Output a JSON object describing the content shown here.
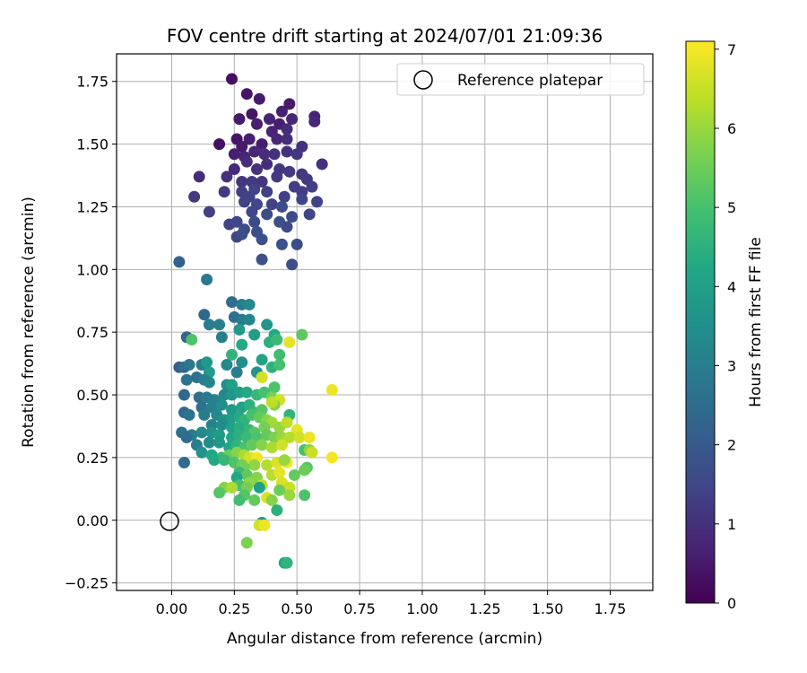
{
  "chart_data": {
    "type": "scatter",
    "title": "FOV centre drift starting at 2024/07/01 21:09:36",
    "xlabel": "Angular distance from reference (arcmin)",
    "ylabel": "Rotation from reference (arcmin)",
    "xlim": [
      -0.22,
      1.92
    ],
    "ylim": [
      -0.28,
      1.86
    ],
    "xticks": [
      0.0,
      0.25,
      0.5,
      0.75,
      1.0,
      1.25,
      1.5,
      1.75
    ],
    "xtick_labels": [
      "0.00",
      "0.25",
      "0.50",
      "0.75",
      "1.00",
      "1.25",
      "1.50",
      "1.75"
    ],
    "yticks": [
      -0.25,
      0.0,
      0.25,
      0.5,
      0.75,
      1.0,
      1.25,
      1.5,
      1.75
    ],
    "ytick_labels": [
      "−0.25",
      "0.00",
      "0.25",
      "0.50",
      "0.75",
      "1.00",
      "1.25",
      "1.50",
      "1.75"
    ],
    "grid": true,
    "legend": {
      "placement": "top-right",
      "entries": [
        "Reference platepar"
      ]
    },
    "reference_point": {
      "x": 0.0,
      "y": 0.0,
      "label": "Reference platepar"
    },
    "colorbar": {
      "label": "Hours from first FF file",
      "colormap": "viridis",
      "range": [
        0,
        7.1
      ],
      "ticks": [
        0,
        1,
        2,
        3,
        4,
        5,
        6,
        7
      ],
      "tick_labels": [
        "0",
        "1",
        "2",
        "3",
        "4",
        "5",
        "6",
        "7"
      ]
    },
    "points": [
      [
        0.24,
        1.76,
        0.3
      ],
      [
        0.3,
        1.7,
        0.4
      ],
      [
        0.35,
        1.68,
        0.5
      ],
      [
        0.44,
        1.63,
        0.6
      ],
      [
        0.47,
        1.66,
        0.5
      ],
      [
        0.57,
        1.61,
        0.7
      ],
      [
        0.57,
        1.59,
        0.8
      ],
      [
        0.27,
        1.6,
        0.5
      ],
      [
        0.32,
        1.62,
        0.4
      ],
      [
        0.34,
        1.58,
        0.6
      ],
      [
        0.39,
        1.6,
        0.7
      ],
      [
        0.43,
        1.58,
        0.6
      ],
      [
        0.48,
        1.6,
        0.8
      ],
      [
        0.46,
        1.56,
        0.9
      ],
      [
        0.19,
        1.5,
        0.3
      ],
      [
        0.26,
        1.52,
        0.4
      ],
      [
        0.28,
        1.49,
        0.5
      ],
      [
        0.31,
        1.52,
        0.6
      ],
      [
        0.36,
        1.5,
        0.5
      ],
      [
        0.4,
        1.55,
        0.7
      ],
      [
        0.42,
        1.52,
        0.8
      ],
      [
        0.46,
        1.52,
        0.9
      ],
      [
        0.52,
        1.49,
        1.0
      ],
      [
        0.25,
        1.46,
        0.6
      ],
      [
        0.29,
        1.45,
        0.7
      ],
      [
        0.33,
        1.47,
        0.8
      ],
      [
        0.37,
        1.46,
        0.9
      ],
      [
        0.41,
        1.46,
        1.0
      ],
      [
        0.46,
        1.47,
        1.0
      ],
      [
        0.5,
        1.46,
        1.1
      ],
      [
        0.25,
        1.4,
        0.8
      ],
      [
        0.3,
        1.43,
        0.9
      ],
      [
        0.34,
        1.4,
        1.0
      ],
      [
        0.38,
        1.42,
        0.9
      ],
      [
        0.43,
        1.4,
        1.1
      ],
      [
        0.47,
        1.39,
        1.2
      ],
      [
        0.52,
        1.38,
        1.1
      ],
      [
        0.54,
        1.36,
        1.2
      ],
      [
        0.6,
        1.42,
        1.0
      ],
      [
        0.11,
        1.37,
        0.9
      ],
      [
        0.22,
        1.37,
        1.0
      ],
      [
        0.28,
        1.35,
        1.1
      ],
      [
        0.32,
        1.35,
        1.2
      ],
      [
        0.36,
        1.35,
        1.1
      ],
      [
        0.42,
        1.37,
        1.2
      ],
      [
        0.49,
        1.33,
        1.3
      ],
      [
        0.52,
        1.31,
        1.3
      ],
      [
        0.56,
        1.33,
        1.3
      ],
      [
        0.21,
        1.31,
        1.2
      ],
      [
        0.28,
        1.31,
        1.3
      ],
      [
        0.31,
        1.29,
        1.4
      ],
      [
        0.33,
        1.32,
        1.4
      ],
      [
        0.38,
        1.31,
        1.3
      ],
      [
        0.45,
        1.29,
        1.4
      ],
      [
        0.09,
        1.29,
        1.2
      ],
      [
        0.29,
        1.27,
        1.4
      ],
      [
        0.34,
        1.26,
        1.5
      ],
      [
        0.4,
        1.26,
        1.4
      ],
      [
        0.44,
        1.25,
        1.6
      ],
      [
        0.52,
        1.28,
        1.5
      ],
      [
        0.58,
        1.27,
        1.4
      ],
      [
        0.15,
        1.23,
        1.3
      ],
      [
        0.32,
        1.23,
        1.5
      ],
      [
        0.38,
        1.22,
        1.6
      ],
      [
        0.48,
        1.21,
        1.6
      ],
      [
        0.55,
        1.22,
        1.5
      ],
      [
        0.33,
        1.19,
        1.6
      ],
      [
        0.23,
        1.18,
        1.4
      ],
      [
        0.26,
        1.19,
        1.5
      ],
      [
        0.29,
        1.16,
        1.6
      ],
      [
        0.34,
        1.15,
        1.7
      ],
      [
        0.43,
        1.19,
        1.7
      ],
      [
        0.46,
        1.17,
        1.6
      ],
      [
        0.26,
        1.13,
        1.5
      ],
      [
        0.28,
        1.14,
        1.7
      ],
      [
        0.36,
        1.12,
        1.7
      ],
      [
        0.44,
        1.1,
        1.8
      ],
      [
        0.5,
        1.1,
        1.7
      ],
      [
        0.36,
        1.04,
        1.8
      ],
      [
        0.48,
        1.02,
        1.7
      ],
      [
        0.03,
        1.03,
        2.2
      ],
      [
        0.14,
        0.96,
        2.8
      ],
      [
        0.24,
        0.87,
        2.5
      ],
      [
        0.28,
        0.86,
        3.0
      ],
      [
        0.31,
        0.86,
        3.3
      ],
      [
        0.13,
        0.82,
        2.4
      ],
      [
        0.25,
        0.81,
        2.6
      ],
      [
        0.28,
        0.8,
        2.9
      ],
      [
        0.15,
        0.78,
        3.0
      ],
      [
        0.31,
        0.8,
        3.2
      ],
      [
        0.38,
        0.78,
        3.7
      ],
      [
        0.19,
        0.78,
        3.1
      ],
      [
        0.27,
        0.76,
        3.8
      ],
      [
        0.33,
        0.74,
        3.9
      ],
      [
        0.41,
        0.74,
        4.3
      ],
      [
        0.52,
        0.74,
        5.3
      ],
      [
        0.06,
        0.73,
        2.3
      ],
      [
        0.08,
        0.72,
        5.1
      ],
      [
        0.2,
        0.73,
        3.0
      ],
      [
        0.28,
        0.7,
        4.3
      ],
      [
        0.39,
        0.71,
        4.5
      ],
      [
        0.42,
        0.72,
        4.8
      ],
      [
        0.47,
        0.71,
        6.8
      ],
      [
        0.36,
        0.64,
        4.1
      ],
      [
        0.43,
        0.66,
        4.9
      ],
      [
        0.24,
        0.66,
        4.6
      ],
      [
        0.03,
        0.61,
        2.1
      ],
      [
        0.05,
        0.61,
        2.5
      ],
      [
        0.07,
        0.62,
        2.8
      ],
      [
        0.12,
        0.62,
        3.0
      ],
      [
        0.14,
        0.63,
        3.8
      ],
      [
        0.15,
        0.59,
        3.9
      ],
      [
        0.22,
        0.62,
        3.3
      ],
      [
        0.28,
        0.63,
        3.5
      ],
      [
        0.34,
        0.59,
        3.6
      ],
      [
        0.4,
        0.61,
        4.5
      ],
      [
        0.43,
        0.62,
        5.0
      ],
      [
        0.26,
        0.59,
        3.0
      ],
      [
        0.06,
        0.56,
        2.7
      ],
      [
        0.1,
        0.57,
        2.6
      ],
      [
        0.13,
        0.56,
        3.0
      ],
      [
        0.15,
        0.55,
        3.2
      ],
      [
        0.22,
        0.54,
        3.5
      ],
      [
        0.24,
        0.54,
        4.0
      ],
      [
        0.36,
        0.57,
        6.6
      ],
      [
        0.41,
        0.53,
        5.1
      ],
      [
        0.05,
        0.5,
        2.4
      ],
      [
        0.11,
        0.49,
        2.6
      ],
      [
        0.14,
        0.49,
        2.9
      ],
      [
        0.17,
        0.48,
        3.1
      ],
      [
        0.21,
        0.5,
        3.3
      ],
      [
        0.24,
        0.5,
        3.7
      ],
      [
        0.27,
        0.51,
        4.0
      ],
      [
        0.3,
        0.51,
        4.3
      ],
      [
        0.34,
        0.5,
        4.7
      ],
      [
        0.37,
        0.51,
        5.0
      ],
      [
        0.4,
        0.49,
        5.6
      ],
      [
        0.43,
        0.48,
        6.6
      ],
      [
        0.64,
        0.52,
        6.9
      ],
      [
        0.12,
        0.45,
        2.6
      ],
      [
        0.16,
        0.45,
        3.1
      ],
      [
        0.2,
        0.46,
        3.4
      ],
      [
        0.24,
        0.44,
        3.8
      ],
      [
        0.28,
        0.45,
        4.1
      ],
      [
        0.31,
        0.46,
        4.5
      ],
      [
        0.33,
        0.43,
        4.8
      ],
      [
        0.36,
        0.44,
        5.2
      ],
      [
        0.41,
        0.46,
        5.8
      ],
      [
        0.4,
        0.47,
        6.4
      ],
      [
        0.05,
        0.43,
        2.4
      ],
      [
        0.07,
        0.42,
        2.7
      ],
      [
        0.13,
        0.42,
        3.0
      ],
      [
        0.18,
        0.42,
        3.3
      ],
      [
        0.21,
        0.4,
        3.6
      ],
      [
        0.24,
        0.41,
        3.9
      ],
      [
        0.27,
        0.41,
        4.3
      ],
      [
        0.29,
        0.4,
        4.6
      ],
      [
        0.32,
        0.42,
        5.0
      ],
      [
        0.35,
        0.41,
        5.4
      ],
      [
        0.38,
        0.4,
        5.8
      ],
      [
        0.4,
        0.39,
        6.1
      ],
      [
        0.47,
        0.42,
        4.6
      ],
      [
        0.16,
        0.38,
        3.1
      ],
      [
        0.2,
        0.38,
        3.4
      ],
      [
        0.24,
        0.37,
        4.0
      ],
      [
        0.27,
        0.37,
        4.4
      ],
      [
        0.31,
        0.36,
        4.7
      ],
      [
        0.33,
        0.35,
        5.2
      ],
      [
        0.37,
        0.37,
        5.6
      ],
      [
        0.43,
        0.37,
        6.0
      ],
      [
        0.46,
        0.39,
        6.4
      ],
      [
        0.5,
        0.36,
        6.8
      ],
      [
        0.04,
        0.35,
        2.6
      ],
      [
        0.08,
        0.34,
        3.0
      ],
      [
        0.12,
        0.35,
        3.3
      ],
      [
        0.16,
        0.35,
        3.6
      ],
      [
        0.19,
        0.34,
        3.9
      ],
      [
        0.24,
        0.33,
        4.2
      ],
      [
        0.27,
        0.34,
        4.5
      ],
      [
        0.3,
        0.33,
        4.8
      ],
      [
        0.34,
        0.33,
        5.1
      ],
      [
        0.38,
        0.34,
        5.4
      ],
      [
        0.41,
        0.33,
        5.7
      ],
      [
        0.44,
        0.33,
        6.0
      ],
      [
        0.47,
        0.33,
        6.3
      ],
      [
        0.51,
        0.33,
        6.6
      ],
      [
        0.55,
        0.33,
        6.9
      ],
      [
        0.06,
        0.33,
        2.5
      ],
      [
        0.1,
        0.3,
        3.0
      ],
      [
        0.15,
        0.31,
        3.4
      ],
      [
        0.19,
        0.31,
        3.8
      ],
      [
        0.23,
        0.29,
        4.2
      ],
      [
        0.26,
        0.3,
        4.6
      ],
      [
        0.29,
        0.29,
        5.0
      ],
      [
        0.32,
        0.3,
        5.4
      ],
      [
        0.36,
        0.3,
        5.8
      ],
      [
        0.4,
        0.29,
        6.2
      ],
      [
        0.44,
        0.3,
        6.6
      ],
      [
        0.12,
        0.27,
        3.6
      ],
      [
        0.16,
        0.26,
        4.2
      ],
      [
        0.2,
        0.25,
        4.8
      ],
      [
        0.23,
        0.26,
        5.4
      ],
      [
        0.26,
        0.27,
        5.8
      ],
      [
        0.29,
        0.26,
        6.2
      ],
      [
        0.31,
        0.25,
        6.6
      ],
      [
        0.34,
        0.25,
        7.0
      ],
      [
        0.53,
        0.28,
        5.0
      ],
      [
        0.55,
        0.28,
        5.9
      ],
      [
        0.56,
        0.27,
        6.5
      ],
      [
        0.64,
        0.25,
        7.0
      ],
      [
        0.05,
        0.23,
        2.5
      ],
      [
        0.17,
        0.24,
        4.3
      ],
      [
        0.21,
        0.24,
        4.7
      ],
      [
        0.25,
        0.23,
        5.1
      ],
      [
        0.28,
        0.22,
        5.5
      ],
      [
        0.33,
        0.22,
        5.9
      ],
      [
        0.38,
        0.22,
        6.3
      ],
      [
        0.42,
        0.23,
        6.7
      ],
      [
        0.46,
        0.23,
        7.0
      ],
      [
        0.45,
        0.24,
        6.0
      ],
      [
        0.29,
        0.21,
        5.6
      ],
      [
        0.54,
        0.21,
        5.2
      ],
      [
        0.53,
        0.2,
        5.5
      ],
      [
        0.27,
        0.19,
        4.8
      ],
      [
        0.3,
        0.18,
        5.3
      ],
      [
        0.34,
        0.17,
        5.8
      ],
      [
        0.4,
        0.18,
        6.3
      ],
      [
        0.43,
        0.19,
        6.8
      ],
      [
        0.49,
        0.18,
        5.4
      ],
      [
        0.26,
        0.17,
        4.2
      ],
      [
        0.31,
        0.15,
        5.9
      ],
      [
        0.36,
        0.14,
        6.4
      ],
      [
        0.44,
        0.15,
        6.7
      ],
      [
        0.27,
        0.14,
        5.0
      ],
      [
        0.21,
        0.13,
        5.8
      ],
      [
        0.24,
        0.13,
        6.2
      ],
      [
        0.3,
        0.13,
        5.6
      ],
      [
        0.35,
        0.13,
        4.0
      ],
      [
        0.47,
        0.13,
        6.5
      ],
      [
        0.19,
        0.11,
        5.2
      ],
      [
        0.43,
        0.12,
        5.5
      ],
      [
        0.47,
        0.1,
        6.0
      ],
      [
        0.29,
        0.1,
        5.2
      ],
      [
        0.38,
        0.09,
        6.7
      ],
      [
        0.27,
        0.08,
        4.9
      ],
      [
        0.33,
        0.08,
        5.4
      ],
      [
        0.4,
        0.08,
        5.8
      ],
      [
        0.53,
        0.1,
        5.1
      ],
      [
        0.42,
        0.04,
        4.5
      ],
      [
        0.36,
        -0.01,
        3.8
      ],
      [
        0.35,
        -0.02,
        6.6
      ],
      [
        0.37,
        -0.02,
        6.9
      ],
      [
        0.3,
        -0.09,
        5.7
      ],
      [
        0.45,
        -0.17,
        4.2
      ],
      [
        0.46,
        -0.17,
        4.6
      ]
    ]
  }
}
